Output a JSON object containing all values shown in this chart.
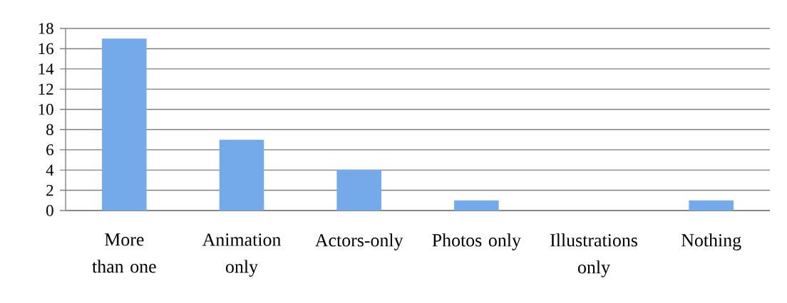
{
  "chart_data": {
    "type": "bar",
    "categories": [
      "More than one",
      "Animation only",
      "Actors-only",
      "Photos only",
      "Illustrations only",
      "Nothing"
    ],
    "values": [
      17,
      7,
      4,
      1,
      0,
      1
    ],
    "color": "#74aaea",
    "ylim": [
      0,
      18
    ],
    "yticks": [
      0,
      2,
      4,
      6,
      8,
      10,
      12,
      14,
      16,
      18
    ],
    "grid": "y"
  }
}
